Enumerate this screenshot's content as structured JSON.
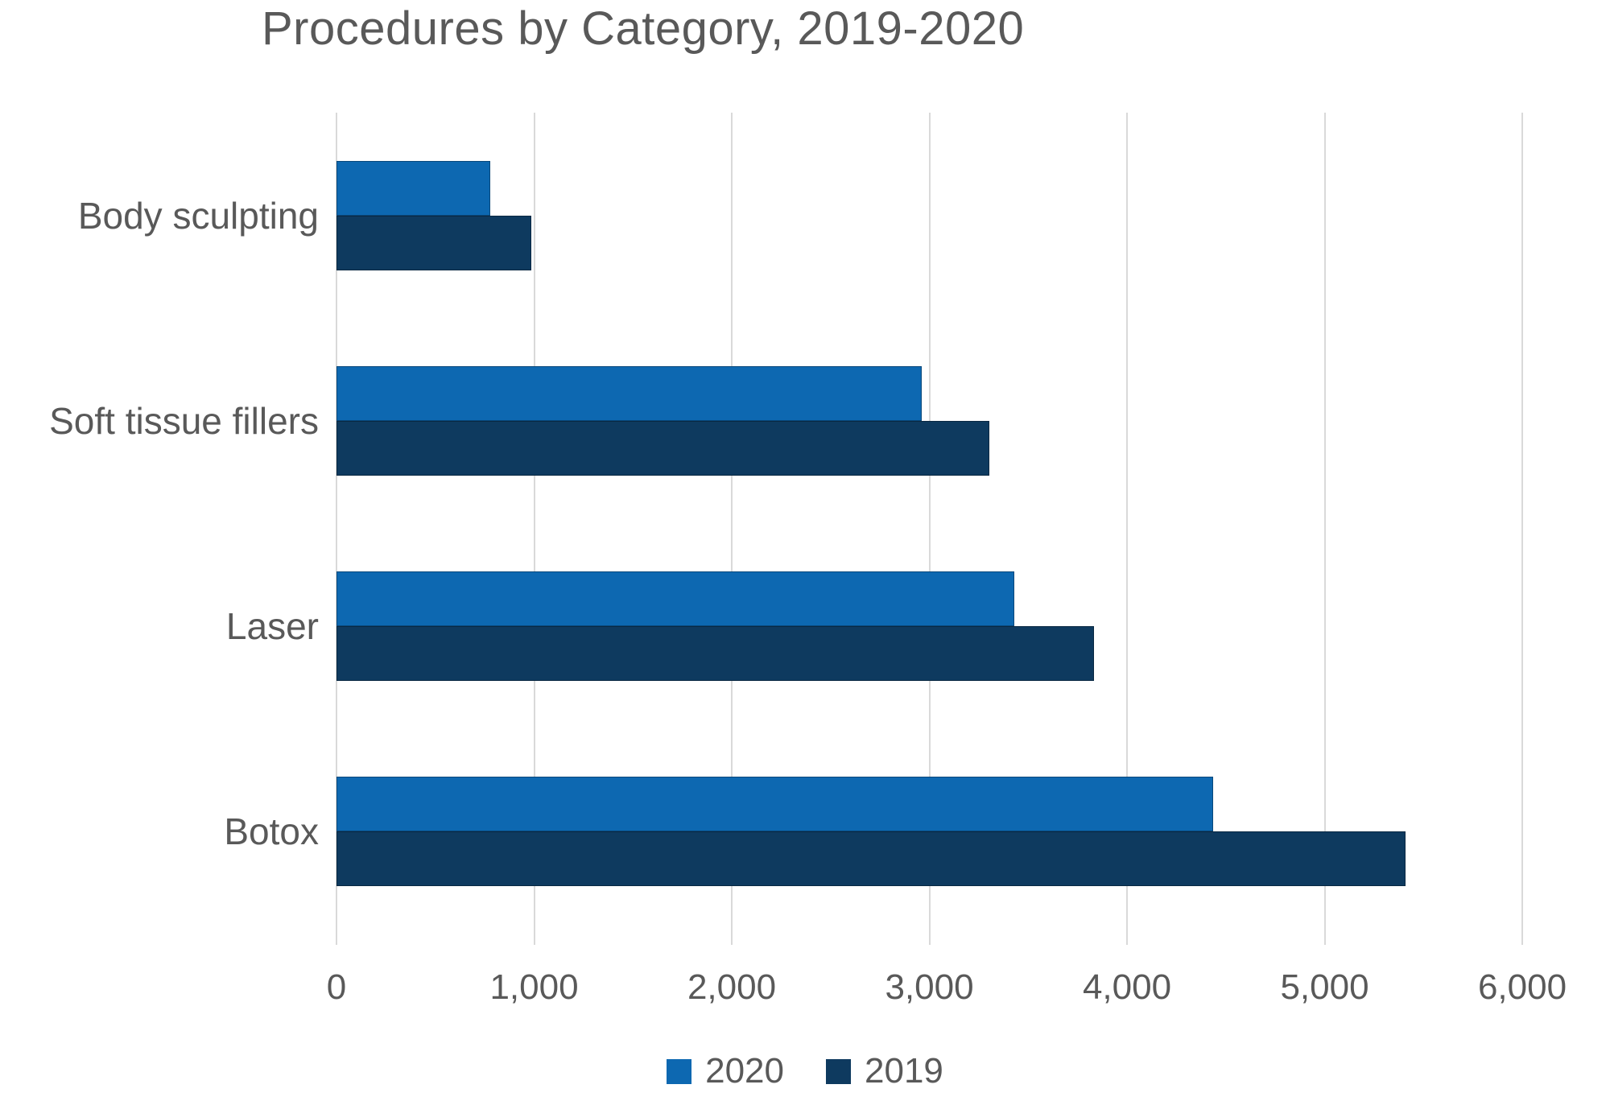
{
  "chart_data": {
    "type": "bar",
    "orientation": "horizontal",
    "title": "Procedures by Category, 2019-2020",
    "categories": [
      "Body sculpting",
      "Soft tissue fillers",
      "Laser",
      "Botox"
    ],
    "series": [
      {
        "name": "2020",
        "color": "#0d68b1",
        "values": [
          780,
          2960,
          3430,
          4435
        ]
      },
      {
        "name": "2019",
        "color": "#0e3a5f",
        "values": [
          985,
          3305,
          3835,
          5410
        ]
      }
    ],
    "x_axis": {
      "min": 0,
      "max": 6000,
      "tick_step": 1000,
      "tick_labels": [
        "0",
        "1,000",
        "2,000",
        "3,000",
        "4,000",
        "5,000",
        "6,000"
      ]
    },
    "y_axis": {
      "label": ""
    },
    "legend": {
      "position": "bottom",
      "entries": [
        "2020",
        "2019"
      ]
    },
    "grid": "vertical",
    "colors": {
      "gridline": "#d9d9d9",
      "text": "#595959",
      "background": "#ffffff"
    }
  }
}
